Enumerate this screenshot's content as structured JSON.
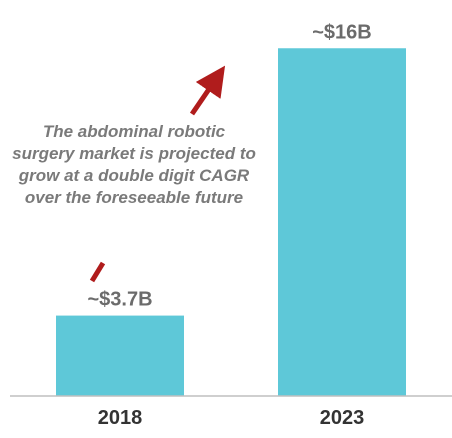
{
  "chart_data": {
    "type": "bar",
    "categories": [
      "2018",
      "2023"
    ],
    "values": [
      3.7,
      16
    ],
    "data_labels": [
      "~$3.7B",
      "~$16B"
    ],
    "title": "",
    "xlabel": "",
    "ylabel": "",
    "ylim": [
      0,
      17.3
    ],
    "grid": false,
    "legend": "none",
    "colors": {
      "bar": "#5ec8d8",
      "axis": "#bfbfbf",
      "arrow": "#b01c1c",
      "annotation_text": "#7a7a7a"
    },
    "annotation": "The abdominal robotic surgery market is projected to grow at a double digit  CAGR over the foreseeable future"
  }
}
